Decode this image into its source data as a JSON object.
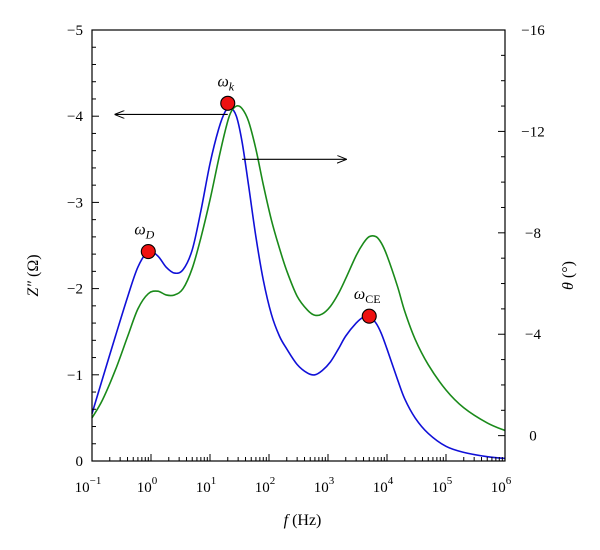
{
  "chart_data": {
    "type": "line",
    "xscale": "log",
    "xlim": [
      0.1,
      1000000
    ],
    "x_ticks": [
      {
        "value": 0.1,
        "base": "10",
        "exp": "−1"
      },
      {
        "value": 1,
        "base": "10",
        "exp": "0"
      },
      {
        "value": 10,
        "base": "10",
        "exp": "1"
      },
      {
        "value": 100,
        "base": "10",
        "exp": "2"
      },
      {
        "value": 1000,
        "base": "10",
        "exp": "3"
      },
      {
        "value": 10000,
        "base": "10",
        "exp": "4"
      },
      {
        "value": 100000,
        "base": "10",
        "exp": "5"
      },
      {
        "value": 1000000,
        "base": "10",
        "exp": "6"
      }
    ],
    "xlabel": {
      "symbol": "f",
      "unit": " (Hz)"
    },
    "y_left": {
      "label": {
        "symbol": "Z″",
        "unit": " (Ω)"
      },
      "lim": [
        0,
        -5
      ],
      "ticks": [
        0,
        -1,
        -2,
        -3,
        -4,
        -5
      ],
      "tick_labels": [
        "0",
        "−1",
        "−2",
        "−3",
        "−4",
        "−5"
      ]
    },
    "y_right": {
      "label": {
        "symbol": "θ",
        "unit": " (°)"
      },
      "lim": [
        1,
        -16
      ],
      "ticks": [
        0,
        -4,
        -8,
        -12,
        -16
      ],
      "tick_labels": [
        "0",
        "−4",
        "−8",
        "−12",
        "−16"
      ]
    },
    "series": [
      {
        "axis": "left",
        "color": "#1010d8",
        "x": [
          0.1,
          0.15,
          0.25,
          0.4,
          0.6,
          0.9,
          1.3,
          1.8,
          2.5,
          3.5,
          5,
          7,
          10,
          14,
          18,
          22,
          28,
          35,
          45,
          60,
          80,
          110,
          150,
          200,
          300,
          450,
          600,
          800,
          1100,
          1500,
          2000,
          3000,
          4000,
          5000,
          6500,
          8000,
          10000,
          15000,
          20000,
          30000,
          50000,
          100000,
          200000,
          500000,
          1000000
        ],
        "y": [
          -0.55,
          -0.95,
          -1.45,
          -1.9,
          -2.25,
          -2.43,
          -2.38,
          -2.25,
          -2.18,
          -2.22,
          -2.45,
          -2.9,
          -3.45,
          -3.85,
          -4.05,
          -4.1,
          -4.0,
          -3.7,
          -3.2,
          -2.6,
          -2.1,
          -1.7,
          -1.45,
          -1.3,
          -1.12,
          -1.02,
          -1.0,
          -1.05,
          -1.15,
          -1.3,
          -1.45,
          -1.6,
          -1.67,
          -1.68,
          -1.6,
          -1.48,
          -1.3,
          -0.95,
          -0.72,
          -0.5,
          -0.32,
          -0.17,
          -0.1,
          -0.05,
          -0.03
        ]
      },
      {
        "axis": "right",
        "color": "#1a8a1a",
        "x": [
          0.1,
          0.15,
          0.25,
          0.4,
          0.6,
          0.9,
          1.3,
          1.8,
          2.5,
          3.5,
          5,
          7,
          10,
          14,
          18,
          22,
          28,
          35,
          45,
          60,
          80,
          110,
          150,
          200,
          300,
          450,
          600,
          800,
          1100,
          1500,
          2000,
          3000,
          4000,
          5000,
          6500,
          8000,
          10000,
          15000,
          20000,
          30000,
          50000,
          100000,
          200000,
          500000,
          1000000
        ],
        "y": [
          -0.7,
          -1.4,
          -2.6,
          -3.9,
          -5.0,
          -5.6,
          -5.7,
          -5.55,
          -5.55,
          -5.8,
          -6.6,
          -7.8,
          -9.3,
          -10.9,
          -12.0,
          -12.7,
          -13.0,
          -12.9,
          -12.4,
          -11.3,
          -9.9,
          -8.5,
          -7.4,
          -6.5,
          -5.5,
          -4.95,
          -4.75,
          -4.8,
          -5.1,
          -5.6,
          -6.2,
          -7.1,
          -7.6,
          -7.85,
          -7.85,
          -7.6,
          -7.1,
          -5.9,
          -4.9,
          -3.8,
          -2.8,
          -1.8,
          -1.1,
          -0.5,
          -0.2
        ]
      }
    ],
    "markers": [
      {
        "x": 0.9,
        "y": -2.43,
        "label": "ω",
        "sub": "D",
        "sub_italic": true
      },
      {
        "x": 20,
        "y": -4.15,
        "label": "ω",
        "sub": "k",
        "sub_italic": true
      },
      {
        "x": 5000,
        "y": -1.68,
        "label": "ω",
        "sub": "CE",
        "sub_italic": false
      }
    ],
    "arrows": [
      {
        "direction": "left",
        "points_to_axis": "left",
        "x_from": 20,
        "x_to": 0.25,
        "y": -4.02
      },
      {
        "direction": "right",
        "points_to_axis": "right",
        "x_from": 35,
        "x_to": 2000,
        "y": -3.5
      }
    ],
    "grid": false,
    "legend": "none"
  }
}
